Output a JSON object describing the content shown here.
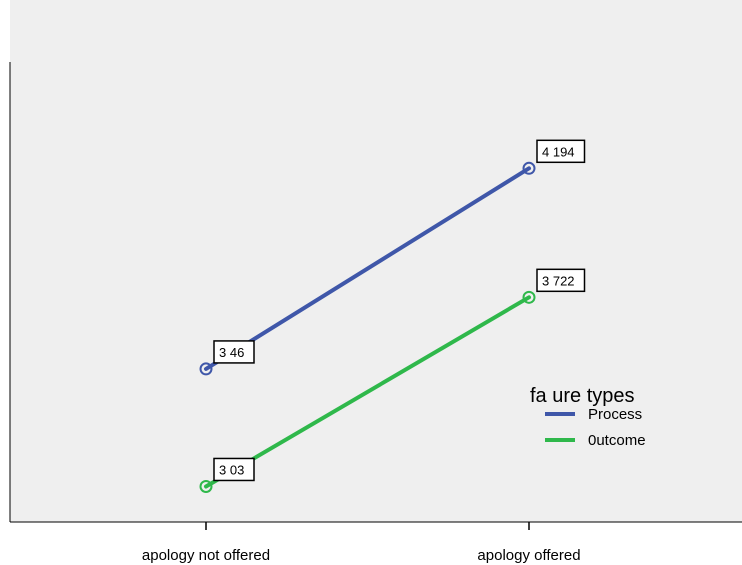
{
  "chart_data": {
    "type": "line",
    "categories": [
      "apology not offered",
      "apology offered"
    ],
    "series": [
      {
        "name": "Process",
        "values": [
          3.46,
          4.194
        ],
        "labels": [
          "3 46",
          "4 194"
        ],
        "color": "#3f57a9"
      },
      {
        "name": "0utcome",
        "values": [
          3.03,
          3.722
        ],
        "labels": [
          "3 03",
          "3 722"
        ],
        "color": "#2fb84b"
      }
    ],
    "legend": {
      "title": "fa  ure types",
      "placement": "right"
    },
    "ylim": [
      2.9,
      4.7
    ],
    "grid": false,
    "colors": {
      "plot_background": "#efefef",
      "axis": "#000000"
    }
  }
}
